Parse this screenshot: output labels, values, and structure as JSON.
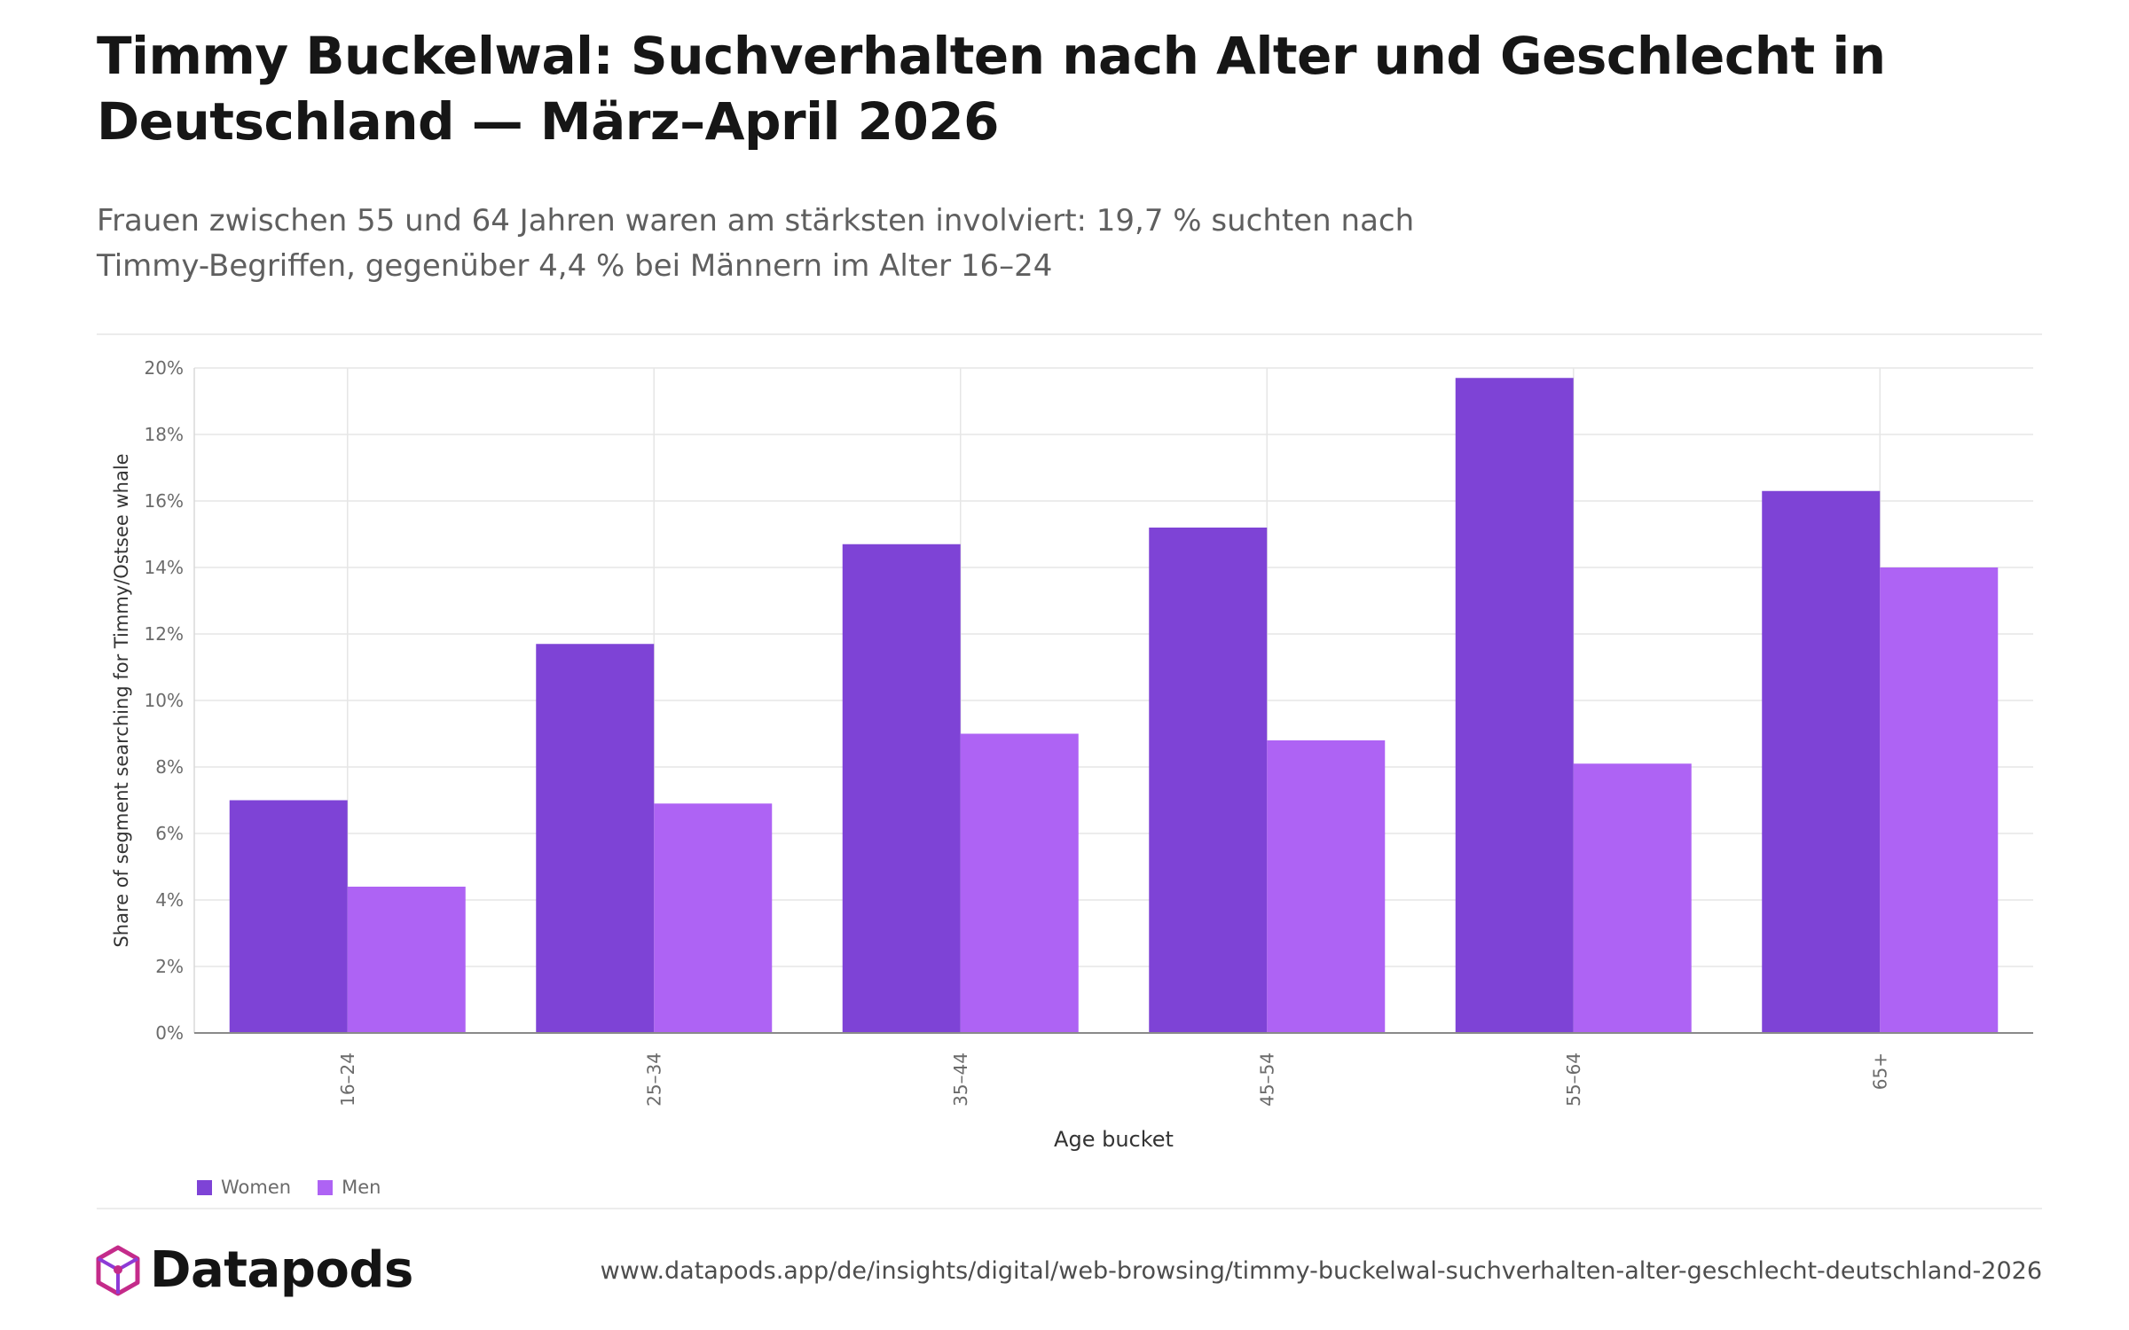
{
  "title": "Timmy Buckelwal: Suchverhalten nach Alter und Geschlecht in Deutschland — März–April 2026",
  "subtitle": "Frauen zwischen 55 und 64 Jahren waren am stärksten involviert: 19,7 % suchten nach Timmy-Begriffen, gegenüber 4,4 % bei Männern im Alter 16–24",
  "chart_data": {
    "type": "bar",
    "xlabel": "Age bucket",
    "ylabel": "Share of segment searching for Timmy/Ostsee whale",
    "categories": [
      "16–24",
      "25–34",
      "35–44",
      "45–54",
      "55–64",
      "65+"
    ],
    "series": [
      {
        "name": "Women",
        "color": "#7e43d6",
        "values": [
          7.0,
          11.7,
          14.7,
          15.2,
          19.7,
          16.3
        ]
      },
      {
        "name": "Men",
        "color": "#ae63f4",
        "values": [
          4.4,
          6.9,
          9.0,
          8.8,
          8.1,
          14.0
        ]
      }
    ],
    "ylim": [
      0,
      20
    ],
    "yticks": [
      0,
      2,
      4,
      6,
      8,
      10,
      12,
      14,
      16,
      18,
      20
    ],
    "ytick_suffix": "%",
    "grid": true,
    "legend": "bottom-left"
  },
  "brand": {
    "name": "Datapods",
    "logo_icon": "datapods-logo-icon",
    "logo_color": "#c42b8a"
  },
  "footer": {
    "url": "www.datapods.app/de/insights/digital/web-browsing/timmy-buckelwal-suchverhalten-alter-geschlecht-deutschland-2026"
  }
}
